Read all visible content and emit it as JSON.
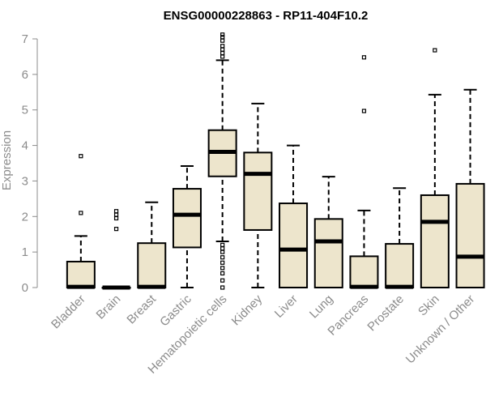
{
  "chart_data": {
    "type": "boxplot",
    "title": "ENSG00000228863 - RP11-404F10.2",
    "xlabel": "",
    "ylabel": "Expression",
    "ylim": [
      0,
      7
    ],
    "yticks": [
      0,
      1,
      2,
      3,
      4,
      5,
      6,
      7
    ],
    "box_fill": "#ede5cc",
    "axis_color": "#8c8c8c",
    "categories": [
      "Bladder",
      "Brain",
      "Breast",
      "Gastric",
      "Hematopoietic cells",
      "Kidney",
      "Liver",
      "Lung",
      "Pancreas",
      "Prostate",
      "Skin",
      "Unknown / Other"
    ],
    "boxes": [
      {
        "name": "Bladder",
        "whisker_low": 0,
        "q1": 0,
        "median": 0.02,
        "q3": 0.73,
        "whisker_high": 1.45,
        "outliers": [
          2.1,
          3.7
        ]
      },
      {
        "name": "Brain",
        "whisker_low": 0,
        "q1": 0,
        "median": 0.0,
        "q3": 0.0,
        "whisker_high": 0,
        "outliers": [
          1.65,
          1.95,
          2.05,
          2.15
        ]
      },
      {
        "name": "Breast",
        "whisker_low": 0,
        "q1": 0,
        "median": 0.02,
        "q3": 1.25,
        "whisker_high": 2.4,
        "outliers": []
      },
      {
        "name": "Gastric",
        "whisker_low": 0,
        "q1": 1.13,
        "median": 2.05,
        "q3": 2.78,
        "whisker_high": 3.42,
        "outliers": []
      },
      {
        "name": "Hematopoietic cells",
        "whisker_low": 1.3,
        "q1": 3.13,
        "median": 3.82,
        "q3": 4.43,
        "whisker_high": 6.4,
        "outliers": [
          0,
          0.2,
          0.4,
          0.55,
          0.7,
          0.85,
          1.0,
          1.1,
          1.2,
          6.5,
          6.6,
          6.7,
          6.8,
          6.95,
          7.05,
          7.12
        ]
      },
      {
        "name": "Kidney",
        "whisker_low": 0,
        "q1": 1.62,
        "median": 3.2,
        "q3": 3.8,
        "whisker_high": 5.18,
        "outliers": []
      },
      {
        "name": "Liver",
        "whisker_low": 0,
        "q1": 0,
        "median": 1.07,
        "q3": 2.37,
        "whisker_high": 4.0,
        "outliers": []
      },
      {
        "name": "Lung",
        "whisker_low": 0,
        "q1": 0,
        "median": 1.3,
        "q3": 1.93,
        "whisker_high": 3.12,
        "outliers": []
      },
      {
        "name": "Pancreas",
        "whisker_low": 0,
        "q1": 0,
        "median": 0.02,
        "q3": 0.88,
        "whisker_high": 2.17,
        "outliers": [
          4.97,
          6.48
        ]
      },
      {
        "name": "Prostate",
        "whisker_low": 0,
        "q1": 0,
        "median": 0.02,
        "q3": 1.23,
        "whisker_high": 2.8,
        "outliers": []
      },
      {
        "name": "Skin",
        "whisker_low": 0,
        "q1": 0,
        "median": 1.85,
        "q3": 2.6,
        "whisker_high": 5.43,
        "outliers": [
          6.68
        ]
      },
      {
        "name": "Unknown / Other",
        "whisker_low": 0,
        "q1": 0,
        "median": 0.87,
        "q3": 2.92,
        "whisker_high": 5.57,
        "outliers": []
      }
    ]
  }
}
